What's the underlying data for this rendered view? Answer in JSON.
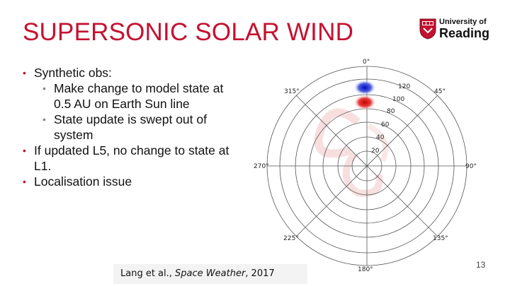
{
  "slide": {
    "title": "SUPERSONIC SOLAR WIND",
    "page_number": "13"
  },
  "logo": {
    "line1": "University of",
    "line2": "Reading",
    "icon": "university-crest-icon"
  },
  "bullets": [
    {
      "level": 1,
      "text": "Synthetic obs:"
    },
    {
      "level": 2,
      "text": "Make change to model state at 0.5 AU on Earth Sun line"
    },
    {
      "level": 2,
      "text": "State update is swept out of system"
    },
    {
      "level": 1,
      "text": "If updated L5, no change to state at L1."
    },
    {
      "level": 1,
      "text": "Localisation issue"
    }
  ],
  "citation": {
    "authors": "Lang et al., ",
    "journal": "Space Weather",
    "year": ", 2017"
  },
  "polar_plot": {
    "angle_labels": [
      "0°",
      "45°",
      "90°",
      "135°",
      "180°",
      "225°",
      "270°",
      "315°"
    ],
    "radial_labels": [
      "20",
      "40",
      "60",
      "80",
      "100",
      "120"
    ],
    "colors": {
      "positive": "#d60000",
      "negative": "#1030d0",
      "background_pattern": "#f3c6c6",
      "grid": "#555555"
    }
  }
}
